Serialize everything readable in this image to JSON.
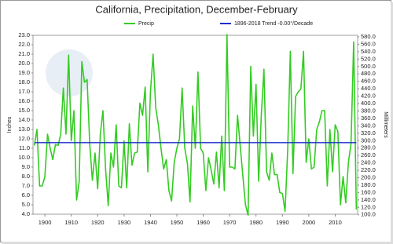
{
  "chart_data": {
    "type": "line",
    "title": "California, Precipitation, December-February",
    "ylabel": "Inches",
    "y2label": "Millimeters",
    "x": [
      1896,
      1897,
      1898,
      1899,
      1900,
      1901,
      1902,
      1903,
      1904,
      1905,
      1906,
      1907,
      1908,
      1909,
      1910,
      1911,
      1912,
      1913,
      1914,
      1915,
      1916,
      1917,
      1918,
      1919,
      1920,
      1921,
      1922,
      1923,
      1924,
      1925,
      1926,
      1927,
      1928,
      1929,
      1930,
      1931,
      1932,
      1933,
      1934,
      1935,
      1936,
      1937,
      1938,
      1939,
      1940,
      1941,
      1942,
      1943,
      1944,
      1945,
      1946,
      1947,
      1948,
      1949,
      1950,
      1951,
      1952,
      1953,
      1954,
      1955,
      1956,
      1957,
      1958,
      1959,
      1960,
      1961,
      1962,
      1963,
      1964,
      1965,
      1966,
      1967,
      1968,
      1969,
      1970,
      1971,
      1972,
      1973,
      1974,
      1975,
      1976,
      1977,
      1978,
      1979,
      1980,
      1981,
      1982,
      1983,
      1984,
      1985,
      1986,
      1987,
      1988,
      1989,
      1990,
      1991,
      1992,
      1993,
      1994,
      1995,
      1996,
      1997,
      1998,
      1999,
      2000,
      2001,
      2002,
      2003,
      2004,
      2005,
      2006,
      2007,
      2008,
      2009,
      2010,
      2011,
      2012,
      2013,
      2014,
      2015,
      2016,
      2017,
      2018
    ],
    "series": [
      {
        "name": "Precip",
        "color": "#33cc22",
        "values": [
          11.3,
          13.0,
          7.0,
          7.0,
          8.0,
          12.5,
          11.0,
          9.8,
          11.4,
          11.3,
          12.5,
          17.4,
          12.5,
          20.9,
          11.8,
          15.0,
          5.5,
          7.5,
          20.2,
          18.0,
          18.3,
          11.4,
          7.6,
          10.5,
          6.7,
          12.5,
          15.0,
          8.8,
          4.9,
          10.5,
          9.0,
          13.5,
          7.0,
          6.8,
          11.8,
          6.8,
          13.6,
          9.2,
          10.5,
          10.6,
          15.8,
          14.5,
          17.5,
          8.5,
          17.0,
          21.0,
          15.3,
          13.5,
          11.0,
          8.8,
          9.8,
          6.5,
          5.4,
          9.5,
          11.0,
          12.0,
          17.4,
          11.0,
          9.4,
          5.3,
          15.5,
          11.0,
          19.1,
          11.0,
          10.5,
          6.5,
          10.0,
          8.7,
          7.2,
          10.6,
          6.8,
          12.3,
          6.5,
          23.1,
          9.0,
          9.0,
          8.8,
          14.5,
          11.3,
          8.1,
          5.0,
          3.9,
          19.7,
          12.3,
          17.8,
          7.5,
          14.5,
          19.4,
          8.5,
          7.6,
          10.5,
          8.2,
          8.2,
          6.3,
          6.2,
          4.3,
          10.8,
          21.3,
          8.3,
          16.5,
          17.0,
          17.3,
          21.3,
          9.5,
          12.0,
          8.8,
          9.0,
          13.0,
          13.8,
          15.0,
          15.0,
          7.0,
          13.0,
          8.5,
          13.5,
          12.8,
          5.0,
          8.0,
          5.2,
          9.5,
          11.5,
          22.3,
          4.5
        ]
      }
    ],
    "trend": {
      "name": "1896-2018 Trend -0.00°/Decade",
      "color": "#1a2dcc",
      "x": [
        1896,
        2018
      ],
      "values": [
        11.6,
        11.6
      ]
    },
    "xlim": [
      1895.5,
      2018.5
    ],
    "xticks": [
      1900,
      1910,
      1920,
      1930,
      1940,
      1950,
      1960,
      1970,
      1980,
      1990,
      2000,
      2010
    ],
    "ylim": [
      4,
      23
    ],
    "yticks": [
      {
        "value": 4,
        "label": "4.0"
      },
      {
        "value": 5,
        "label": "5.0"
      },
      {
        "value": 6,
        "label": "6.0"
      },
      {
        "value": 7,
        "label": "7.0"
      },
      {
        "value": 8,
        "label": "8.0"
      },
      {
        "value": 9,
        "label": "9.0"
      },
      {
        "value": 10,
        "label": "10.0"
      },
      {
        "value": 11,
        "label": "11.0"
      },
      {
        "value": 12,
        "label": "12.0"
      },
      {
        "value": 13,
        "label": "13.0"
      },
      {
        "value": 14,
        "label": "14.0"
      },
      {
        "value": 15,
        "label": "15.0"
      },
      {
        "value": 16,
        "label": "16.0"
      },
      {
        "value": 17,
        "label": "17.0"
      },
      {
        "value": 18,
        "label": "18.0"
      },
      {
        "value": 19,
        "label": "19.0"
      },
      {
        "value": 20,
        "label": "20.0"
      },
      {
        "value": 21,
        "label": "21.0"
      },
      {
        "value": 22,
        "label": "22.0"
      },
      {
        "value": 23,
        "label": "23.0"
      }
    ],
    "y2lim": [
      101.6,
      584.2
    ],
    "y2ticks": [
      {
        "value": 100,
        "label": "100.0"
      },
      {
        "value": 120,
        "label": "120.0"
      },
      {
        "value": 140,
        "label": "140.0"
      },
      {
        "value": 160,
        "label": "160.0"
      },
      {
        "value": 180,
        "label": "180.0"
      },
      {
        "value": 200,
        "label": "200.0"
      },
      {
        "value": 220,
        "label": "220.0"
      },
      {
        "value": 240,
        "label": "240.0"
      },
      {
        "value": 260,
        "label": "260.0"
      },
      {
        "value": 280,
        "label": "280.0"
      },
      {
        "value": 300,
        "label": "300.0"
      },
      {
        "value": 320,
        "label": "320.0"
      },
      {
        "value": 340,
        "label": "340.0"
      },
      {
        "value": 360,
        "label": "360.0"
      },
      {
        "value": 380,
        "label": "380.0"
      },
      {
        "value": 400,
        "label": "400.0"
      },
      {
        "value": 420,
        "label": "420.0"
      },
      {
        "value": 440,
        "label": "440.0"
      },
      {
        "value": 460,
        "label": "460.0"
      },
      {
        "value": 480,
        "label": "480.0"
      },
      {
        "value": 500,
        "label": "500.0"
      },
      {
        "value": 520,
        "label": "520.0"
      },
      {
        "value": 540,
        "label": "540.0"
      },
      {
        "value": 560,
        "label": "560.0"
      },
      {
        "value": 580,
        "label": "580.0"
      }
    ],
    "grid": false
  }
}
